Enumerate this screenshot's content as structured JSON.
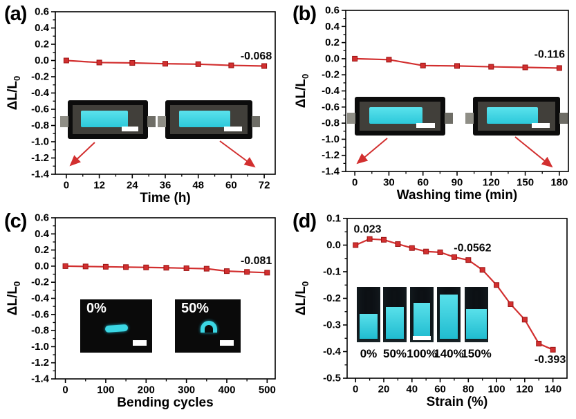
{
  "figure": {
    "colors": {
      "line_red": "#d22f2f",
      "sample_cyan": "#3bd7e4",
      "scalebar_white": "#ffffff",
      "inset_background": "#0a0a0a"
    }
  },
  "insets": {
    "c": {
      "labels": [
        "0%",
        "50%"
      ]
    },
    "d": {
      "labels": [
        "0%",
        "50%",
        "100%",
        "140%",
        "150%"
      ]
    }
  },
  "chart_data": [
    {
      "panel_label": "(a)",
      "type": "line",
      "xlabel": "Time (h)",
      "ylabel": "ΔL/L",
      "ylabel_sub": "0",
      "x": [
        0,
        12,
        24,
        36,
        48,
        60,
        72
      ],
      "y": [
        0.0,
        -0.025,
        -0.03,
        -0.04,
        -0.045,
        -0.06,
        -0.068
      ],
      "xlim": [
        -4,
        76
      ],
      "ylim": [
        -1.4,
        0.6
      ],
      "xticks": [
        0,
        12,
        24,
        36,
        48,
        60,
        72
      ],
      "xtick_labels": [
        "0",
        "12",
        "24",
        "36",
        "48",
        "60",
        "72"
      ],
      "xminor_step": 6,
      "yticks": [
        0.6,
        0.4,
        0.2,
        0.0,
        -0.2,
        -0.4,
        -0.6,
        -0.8,
        -1.0,
        -1.2,
        -1.4
      ],
      "ytick_labels": [
        "0.6",
        "0.4",
        "0.2",
        "0.0",
        "-0.2",
        "-0.4",
        "-0.6",
        "-0.8",
        "-1.0",
        "-1.2",
        "-1.4"
      ],
      "yminor_step": 0.1,
      "line_color": "#d22f2f",
      "marker": "square",
      "grid": false,
      "legend": null,
      "annotations": [
        {
          "text": "-0.068",
          "x": 74.8,
          "y": 0.05,
          "anchor": "end"
        }
      ]
    },
    {
      "panel_label": "(b)",
      "type": "line",
      "xlabel": "Washing time (min)",
      "ylabel": "ΔL/L",
      "ylabel_sub": "0",
      "x": [
        0,
        30,
        60,
        90,
        120,
        150,
        180
      ],
      "y": [
        0.0,
        -0.012,
        -0.085,
        -0.09,
        -0.1,
        -0.108,
        -0.116
      ],
      "xlim": [
        -8,
        188
      ],
      "ylim": [
        -1.4,
        0.6
      ],
      "xticks": [
        0,
        30,
        60,
        90,
        120,
        150,
        180
      ],
      "xtick_labels": [
        "0",
        "30",
        "60",
        "90",
        "120",
        "150",
        "180"
      ],
      "xminor_step": 15,
      "yticks": [
        0.6,
        0.4,
        0.2,
        0.0,
        -0.2,
        -0.4,
        -0.6,
        -0.8,
        -1.0,
        -1.2,
        -1.4
      ],
      "ytick_labels": [
        "0.6",
        "0.4",
        "0.2",
        "0.0",
        "-0.2",
        "-0.4",
        "-0.6",
        "-0.8",
        "-1.0",
        "-1.2",
        "-1.4"
      ],
      "yminor_step": 0.1,
      "line_color": "#d22f2f",
      "marker": "square",
      "grid": false,
      "legend": null,
      "annotations": [
        {
          "text": "-0.116",
          "x": 185,
          "y": 0.05,
          "anchor": "end"
        }
      ]
    },
    {
      "panel_label": "(c)",
      "type": "line",
      "xlabel": "Bending cycles",
      "ylabel": "ΔL/L",
      "ylabel_sub": "0",
      "x": [
        0,
        50,
        100,
        150,
        200,
        250,
        300,
        350,
        400,
        450,
        500
      ],
      "y": [
        0.0,
        -0.004,
        -0.008,
        -0.012,
        -0.016,
        -0.02,
        -0.026,
        -0.032,
        -0.062,
        -0.072,
        -0.081
      ],
      "xlim": [
        -25,
        520
      ],
      "ylim": [
        -1.4,
        0.6
      ],
      "xticks": [
        0,
        100,
        200,
        300,
        400,
        500
      ],
      "xtick_labels": [
        "0",
        "100",
        "200",
        "300",
        "400",
        "500"
      ],
      "xminor_step": 50,
      "yticks": [
        0.6,
        0.4,
        0.2,
        0.0,
        -0.2,
        -0.4,
        -0.6,
        -0.8,
        -1.0,
        -1.2,
        -1.4
      ],
      "ytick_labels": [
        "0.6",
        "0.4",
        "0.2",
        "0.0",
        "-0.2",
        "-0.4",
        "-0.6",
        "-0.8",
        "-1.0",
        "-1.2",
        "-1.4"
      ],
      "yminor_step": 0.1,
      "line_color": "#d22f2f",
      "marker": "square",
      "grid": false,
      "legend": null,
      "annotations": [
        {
          "text": "-0.081",
          "x": 512,
          "y": 0.06,
          "anchor": "end"
        }
      ]
    },
    {
      "panel_label": "(d)",
      "type": "line",
      "xlabel": "Strain (%)",
      "ylabel": "ΔL/L",
      "ylabel_sub": "0",
      "x": [
        0,
        10,
        20,
        30,
        40,
        50,
        60,
        70,
        80,
        90,
        100,
        110,
        120,
        130,
        140
      ],
      "y": [
        0.0,
        0.023,
        0.02,
        0.004,
        -0.011,
        -0.024,
        -0.027,
        -0.045,
        -0.0562,
        -0.093,
        -0.15,
        -0.222,
        -0.28,
        -0.37,
        -0.393
      ],
      "xlim": [
        -6,
        150
      ],
      "ylim": [
        -0.5,
        0.1
      ],
      "xticks": [
        0,
        20,
        40,
        60,
        80,
        100,
        120,
        140
      ],
      "xtick_labels": [
        "0",
        "20",
        "40",
        "60",
        "80",
        "100",
        "120",
        "140"
      ],
      "xminor_step": 10,
      "yticks": [
        0.1,
        0.0,
        -0.1,
        -0.2,
        -0.3,
        -0.4,
        -0.5
      ],
      "ytick_labels": [
        "0.1",
        "0.0",
        "-0.1",
        "-0.2",
        "-0.3",
        "-0.4",
        "-0.5"
      ],
      "yminor_step": 0.05,
      "line_color": "#d22f2f",
      "marker": "square",
      "grid": false,
      "legend": null,
      "annotations": [
        {
          "text": "0.023",
          "x": 8.5,
          "y": 0.058,
          "anchor": "middle"
        },
        {
          "text": "-0.0562",
          "x": 83,
          "y": -0.013,
          "anchor": "middle"
        },
        {
          "text": "-0.393",
          "x": 138,
          "y": -0.432,
          "anchor": "middle"
        }
      ]
    }
  ]
}
